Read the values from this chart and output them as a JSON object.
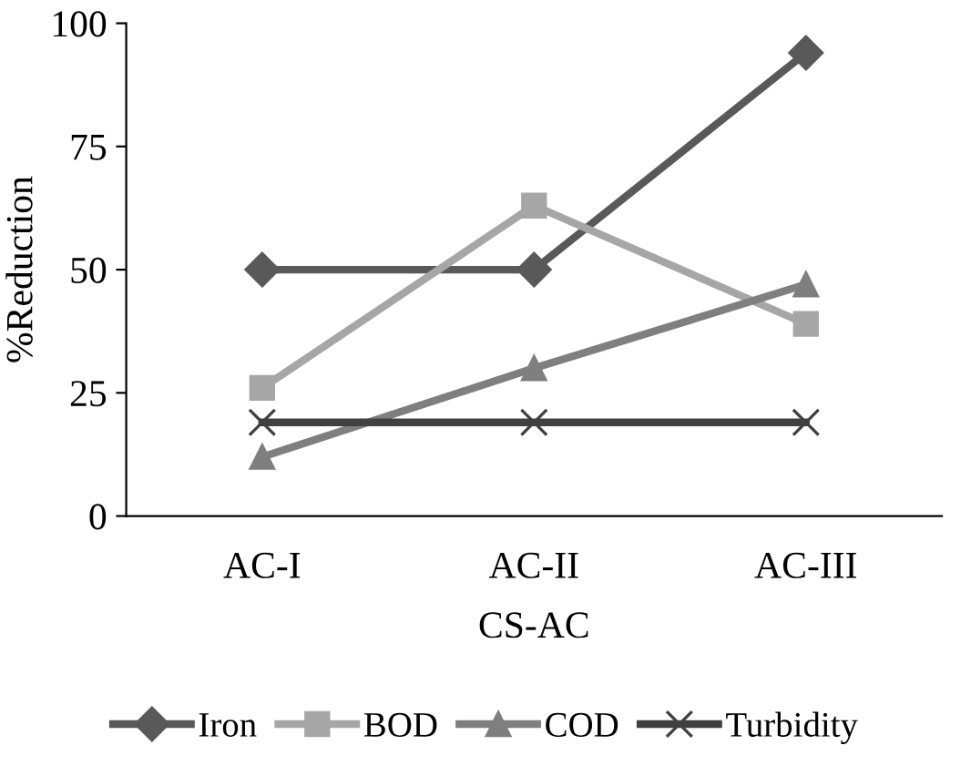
{
  "chart_data": {
    "type": "line",
    "xlabel": "CS-AC",
    "ylabel": "%Reduction",
    "categories": [
      "AC-I",
      "AC-II",
      "AC-III"
    ],
    "series": [
      {
        "name": "Iron",
        "color": "#595959",
        "values": [
          50,
          50,
          94
        ],
        "marker": "diamond"
      },
      {
        "name": "BOD",
        "color": "#a6a6a6",
        "values": [
          26,
          63,
          39
        ],
        "marker": "square"
      },
      {
        "name": "COD",
        "color": "#7f7f7f",
        "values": [
          12,
          30,
          47
        ],
        "marker": "triangle"
      },
      {
        "name": "Turbidity",
        "color": "#404040",
        "values": [
          19,
          19,
          19
        ],
        "marker": "cross"
      }
    ],
    "ylim": [
      0,
      100
    ],
    "yticks": [
      0,
      25,
      50,
      75,
      100
    ],
    "grid": false,
    "legend": "bottom",
    "line_style": "solid"
  }
}
